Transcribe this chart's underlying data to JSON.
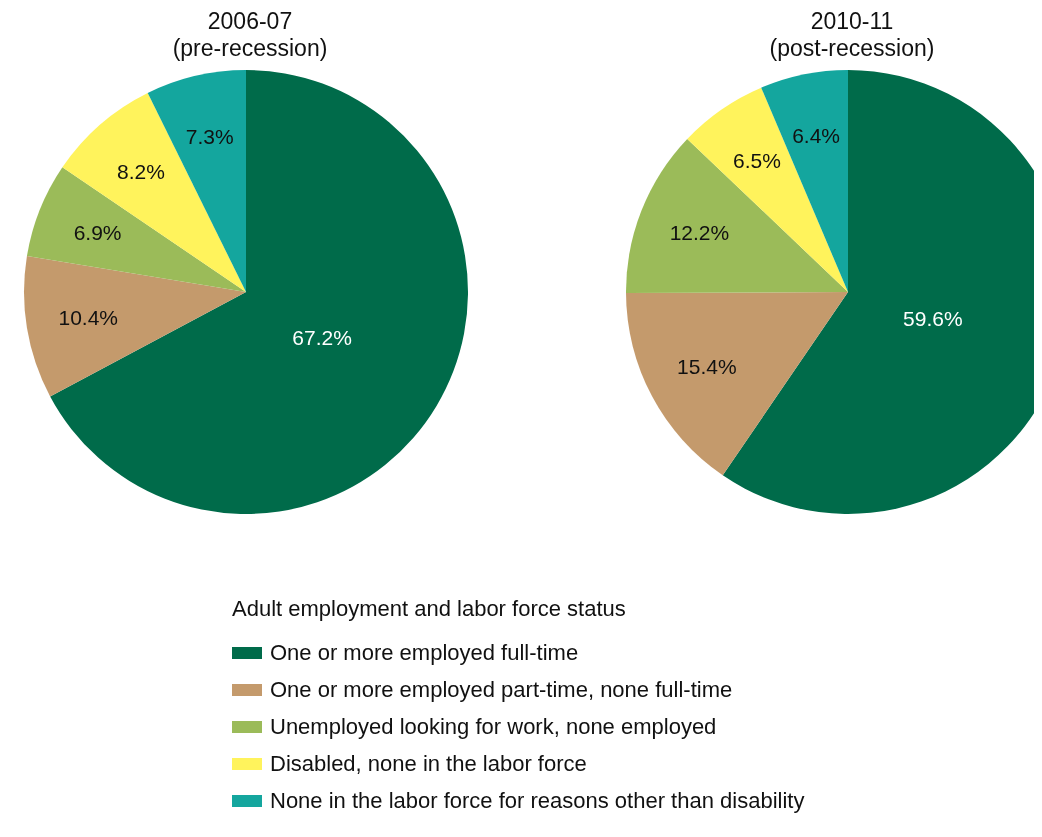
{
  "chart_data": [
    {
      "type": "pie",
      "title": "2006-07",
      "subtitle": "(pre-recession)",
      "categories": [
        "One or more employed full-time",
        "One or more employed part-time, none full-time",
        "Unemployed looking for work, none employed",
        "Disabled, none in the labor force",
        "None in the labor force for reasons other than disability"
      ],
      "values": [
        67.2,
        10.4,
        6.9,
        8.2,
        7.3
      ],
      "value_labels": [
        "67.2%",
        "10.4%",
        "6.9%",
        "8.2%",
        "7.3%"
      ],
      "colors": [
        "#006b4a",
        "#c49a6c",
        "#9bbb59",
        "#fff35c",
        "#14a69e"
      ],
      "legend": "bottom",
      "legend_title": "Adult employment and labor force status"
    },
    {
      "type": "pie",
      "title": "2010-11",
      "subtitle": "(post-recession)",
      "categories": [
        null,
        null,
        null,
        null,
        null
      ],
      "values": [
        59.6,
        15.4,
        12.2,
        6.5,
        6.4
      ],
      "value_labels": [
        "59.6%",
        "15.4%",
        "12.2%",
        "6.5%",
        "6.4%"
      ],
      "colors": [
        "#006b4a",
        "#c49a6c",
        "#9bbb59",
        "#fff35c",
        "#14a69e"
      ],
      "legend": false
    }
  ]
}
